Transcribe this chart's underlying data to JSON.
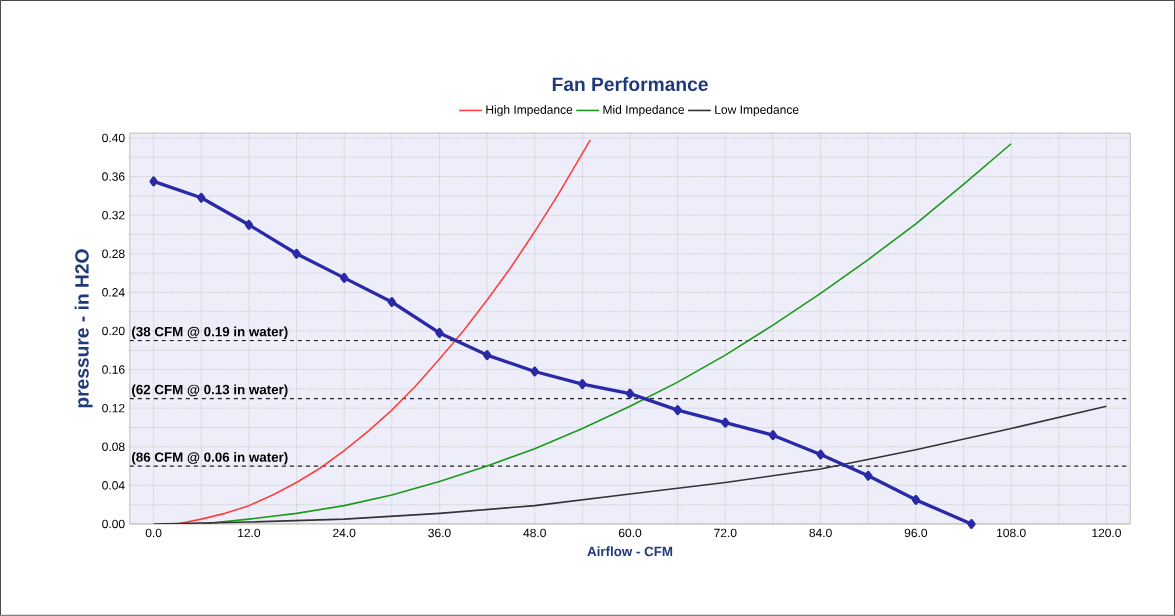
{
  "chart_data": {
    "type": "line",
    "title": "Fan Performance",
    "xlabel": "Airflow - CFM",
    "ylabel": "pressure - in H2O",
    "xlim": [
      -3,
      123
    ],
    "ylim": [
      0,
      0.405
    ],
    "xticks": [
      {
        "value": 0,
        "label": "0.0"
      },
      {
        "value": 6,
        "label": null
      },
      {
        "value": 12,
        "label": "12.0"
      },
      {
        "value": 18,
        "label": null
      },
      {
        "value": 24,
        "label": "24.0"
      },
      {
        "value": 30,
        "label": null
      },
      {
        "value": 36,
        "label": "36.0"
      },
      {
        "value": 42,
        "label": null
      },
      {
        "value": 48,
        "label": "48.0"
      },
      {
        "value": 54,
        "label": null
      },
      {
        "value": 60,
        "label": "60.0"
      },
      {
        "value": 66,
        "label": null
      },
      {
        "value": 72,
        "label": "72.0"
      },
      {
        "value": 78,
        "label": null
      },
      {
        "value": 84,
        "label": "84.0"
      },
      {
        "value": 90,
        "label": null
      },
      {
        "value": 96,
        "label": "96.0"
      },
      {
        "value": 102,
        "label": null
      },
      {
        "value": 108,
        "label": "108.0"
      },
      {
        "value": 114,
        "label": null
      },
      {
        "value": 120,
        "label": "120.0"
      }
    ],
    "yticks": [
      {
        "value": 0,
        "label": "0.00"
      },
      {
        "value": 0.02,
        "label": null
      },
      {
        "value": 0.04,
        "label": "0.04"
      },
      {
        "value": 0.06,
        "label": null
      },
      {
        "value": 0.08,
        "label": "0.08"
      },
      {
        "value": 0.1,
        "label": null
      },
      {
        "value": 0.12,
        "label": "0.12"
      },
      {
        "value": 0.14,
        "label": null
      },
      {
        "value": 0.16,
        "label": "0.16"
      },
      {
        "value": 0.18,
        "label": null
      },
      {
        "value": 0.2,
        "label": "0.20"
      },
      {
        "value": 0.22,
        "label": null
      },
      {
        "value": 0.24,
        "label": "0.24"
      },
      {
        "value": 0.26,
        "label": null
      },
      {
        "value": 0.28,
        "label": "0.28"
      },
      {
        "value": 0.3,
        "label": null
      },
      {
        "value": 0.32,
        "label": "0.32"
      },
      {
        "value": 0.34,
        "label": null
      },
      {
        "value": 0.36,
        "label": "0.36"
      },
      {
        "value": 0.38,
        "label": null
      },
      {
        "value": 0.4,
        "label": "0.40"
      }
    ],
    "grid": true,
    "legend": "top",
    "series": [
      {
        "name": "High Impedance",
        "color": "#ff4040",
        "x": [
          3,
          6,
          9,
          12,
          15,
          18,
          21,
          24,
          27,
          30,
          33,
          36,
          39,
          42,
          45,
          48,
          51,
          54,
          55
        ],
        "values": [
          0,
          0.005,
          0.011,
          0.019,
          0.03,
          0.043,
          0.058,
          0.076,
          0.096,
          0.118,
          0.143,
          0.171,
          0.2,
          0.232,
          0.266,
          0.303,
          0.342,
          0.384,
          0.398
        ]
      },
      {
        "name": "Mid Impedance",
        "color": "#1a9a1a",
        "x": [
          6,
          12,
          18,
          24,
          30,
          36,
          42,
          48,
          54,
          60,
          66,
          72,
          78,
          84,
          90,
          96,
          102,
          108
        ],
        "values": [
          0,
          0.005,
          0.011,
          0.019,
          0.03,
          0.044,
          0.06,
          0.078,
          0.099,
          0.122,
          0.147,
          0.175,
          0.206,
          0.239,
          0.274,
          0.311,
          0.352,
          0.394
        ]
      },
      {
        "name": "Low Impedance",
        "color": "#333333",
        "x": [
          0,
          12,
          24,
          36,
          48,
          60,
          72,
          84,
          96,
          108,
          120
        ],
        "values": [
          0,
          0.002,
          0.005,
          0.011,
          0.019,
          0.031,
          0.043,
          0.057,
          0.077,
          0.099,
          0.122
        ]
      },
      {
        "color": "#2a2aa8",
        "marker": "diamond",
        "x": [
          0,
          6,
          12,
          18,
          24,
          30,
          36,
          42,
          48,
          54,
          60,
          66,
          72,
          78,
          84,
          90,
          96,
          103
        ],
        "values": [
          0.355,
          0.338,
          0.31,
          0.28,
          0.255,
          0.23,
          0.198,
          0.175,
          0.158,
          0.145,
          0.135,
          0.118,
          0.105,
          0.092,
          0.072,
          0.05,
          0.025,
          0
        ]
      }
    ],
    "ref_lines": [
      {
        "axis": "y",
        "value": 0.19,
        "label": "(38 CFM @ 0.19 in water)",
        "line_style": "dashed",
        "color": "#222222"
      },
      {
        "axis": "y",
        "value": 0.13,
        "label": "(62 CFM @ 0.13 in water)",
        "line_style": "dashed",
        "color": "#222222"
      },
      {
        "axis": "y",
        "value": 0.06,
        "label": "(86 CFM @ 0.06 in water)",
        "line_style": "dashed",
        "color": "#222222"
      }
    ]
  }
}
